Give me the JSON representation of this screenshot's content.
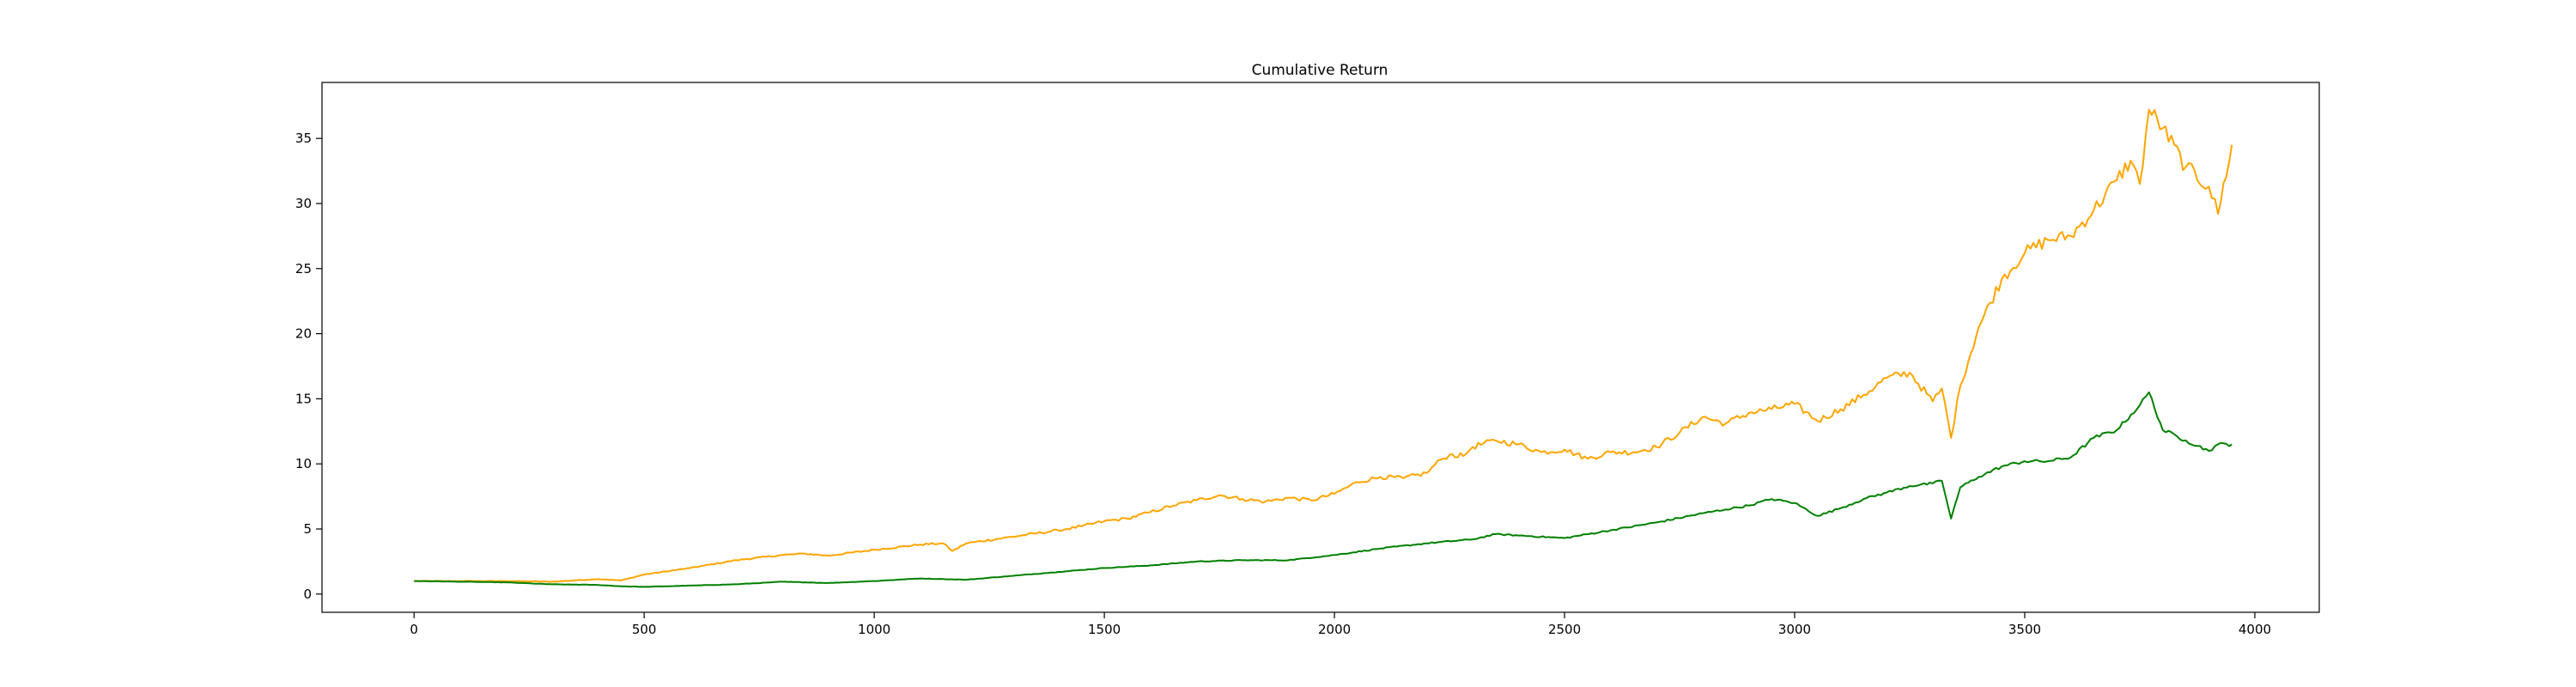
{
  "chart_data": {
    "type": "line",
    "title": "Cumulative Return",
    "xlabel": "",
    "ylabel": "",
    "xlim": [
      -200,
      4140
    ],
    "ylim": [
      -1.4,
      39.3
    ],
    "xticks": [
      0,
      500,
      1000,
      1500,
      2000,
      2500,
      3000,
      3500,
      4000
    ],
    "yticks": [
      0,
      5,
      10,
      15,
      20,
      25,
      30,
      35
    ],
    "grid": false,
    "legend": "none",
    "series": [
      {
        "color": "#ffa500",
        "x": [
          0,
          100,
          200,
          300,
          400,
          450,
          500,
          600,
          700,
          800,
          850,
          900,
          1000,
          1100,
          1150,
          1170,
          1200,
          1300,
          1400,
          1450,
          1500,
          1550,
          1600,
          1650,
          1700,
          1750,
          1800,
          1850,
          1900,
          1950,
          2000,
          2050,
          2100,
          2150,
          2200,
          2230,
          2250,
          2280,
          2300,
          2350,
          2400,
          2450,
          2500,
          2550,
          2600,
          2650,
          2700,
          2750,
          2800,
          2850,
          2900,
          2950,
          3000,
          3050,
          3100,
          3150,
          3200,
          3250,
          3300,
          3320,
          3340,
          3360,
          3400,
          3450,
          3500,
          3550,
          3600,
          3650,
          3700,
          3730,
          3750,
          3770,
          3800,
          3850,
          3900,
          3920,
          3950
        ],
        "values": [
          1.0,
          1.0,
          1.0,
          0.95,
          1.15,
          1.05,
          1.5,
          2.0,
          2.6,
          3.0,
          3.1,
          2.95,
          3.4,
          3.8,
          3.9,
          3.3,
          3.9,
          4.4,
          4.9,
          5.2,
          5.6,
          5.8,
          6.3,
          6.8,
          7.2,
          7.6,
          7.3,
          7.1,
          7.4,
          7.2,
          7.7,
          8.6,
          9.0,
          8.9,
          9.3,
          10.3,
          10.7,
          10.6,
          11.3,
          11.8,
          11.5,
          10.9,
          11.1,
          10.4,
          10.9,
          10.9,
          11.3,
          12.4,
          13.6,
          13.1,
          13.9,
          14.2,
          14.6,
          13.3,
          14.2,
          15.3,
          16.6,
          17.0,
          14.8,
          15.8,
          12.0,
          16.0,
          20.5,
          24.2,
          26.2,
          27.2,
          27.5,
          29.5,
          31.8,
          33.3,
          31.5,
          37.2,
          35.8,
          32.8,
          31.3,
          29.2,
          34.5
        ]
      },
      {
        "color": "#008000",
        "x": [
          0,
          100,
          200,
          300,
          400,
          450,
          500,
          600,
          700,
          800,
          850,
          900,
          1000,
          1100,
          1150,
          1200,
          1300,
          1400,
          1500,
          1600,
          1700,
          1800,
          1900,
          2000,
          2100,
          2200,
          2300,
          2350,
          2400,
          2500,
          2600,
          2700,
          2800,
          2850,
          2900,
          2950,
          3000,
          3050,
          3100,
          3150,
          3200,
          3250,
          3300,
          3320,
          3340,
          3360,
          3400,
          3450,
          3500,
          3550,
          3600,
          3650,
          3700,
          3750,
          3770,
          3800,
          3850,
          3900,
          3920,
          3950
        ],
        "values": [
          1.0,
          0.95,
          0.9,
          0.75,
          0.7,
          0.6,
          0.55,
          0.65,
          0.75,
          0.95,
          0.9,
          0.85,
          1.0,
          1.2,
          1.15,
          1.1,
          1.4,
          1.7,
          2.0,
          2.2,
          2.5,
          2.6,
          2.6,
          3.0,
          3.5,
          3.9,
          4.2,
          4.6,
          4.5,
          4.3,
          4.9,
          5.5,
          6.2,
          6.5,
          6.8,
          7.3,
          7.0,
          6.0,
          6.6,
          7.3,
          7.8,
          8.3,
          8.5,
          8.7,
          5.8,
          8.2,
          9.0,
          9.8,
          10.2,
          10.2,
          10.5,
          12.0,
          12.6,
          14.5,
          15.5,
          12.6,
          11.8,
          11.0,
          11.5,
          11.5
        ]
      }
    ]
  }
}
